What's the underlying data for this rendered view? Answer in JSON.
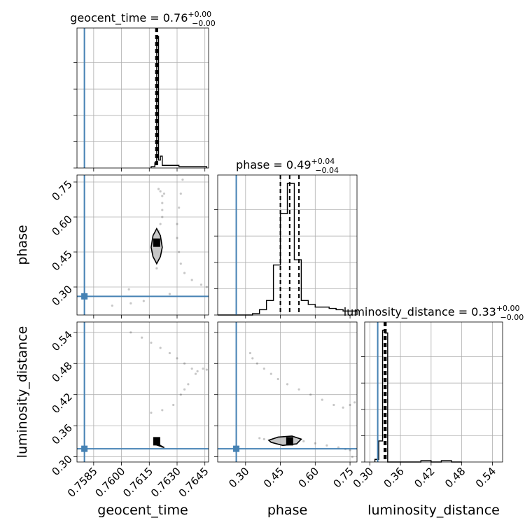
{
  "chart_data": {
    "type": "scatter",
    "subtype": "corner-plot",
    "grid": true,
    "truth_color": "#4682b4",
    "parameters": [
      {
        "name": "geocent_time",
        "title_prefix": "geocent_time = ",
        "median": "0.76",
        "plus": "+0.00",
        "minus": "−0.00",
        "range": [
          0.7576,
          0.7647
        ],
        "ticks": [
          0.7585,
          0.76,
          0.7615,
          0.763,
          0.7645
        ],
        "tick_labels": [
          "0.7585",
          "0.7600",
          "0.7615",
          "0.7630",
          "0.7645"
        ],
        "truth": 0.758,
        "quantiles": [
          0.7619,
          0.7619,
          0.7619
        ],
        "hist_edges": [
          0.7616,
          0.7618,
          0.7619,
          0.762,
          0.7621,
          0.7622,
          0.7631,
          0.7646
        ],
        "hist_counts": [
          0.01,
          0.04,
          1.0,
          0.06,
          0.09,
          0.02,
          0.01
        ]
      },
      {
        "name": "phase",
        "title_prefix": "phase = ",
        "median": "0.49",
        "plus": "+0.04",
        "minus": "−0.04",
        "range": [
          0.18,
          0.78
        ],
        "ticks": [
          0.3,
          0.45,
          0.6,
          0.75
        ],
        "tick_labels": [
          "0.30",
          "0.45",
          "0.60",
          "0.75"
        ],
        "truth": 0.26,
        "quantiles": [
          0.45,
          0.49,
          0.53
        ],
        "hist_edges": [
          0.18,
          0.21,
          0.24,
          0.27,
          0.3,
          0.33,
          0.36,
          0.39,
          0.42,
          0.45,
          0.48,
          0.51,
          0.54,
          0.57,
          0.6,
          0.63,
          0.66,
          0.69,
          0.72,
          0.75,
          0.78
        ],
        "hist_counts": [
          0,
          0,
          0,
          0,
          0,
          0.01,
          0.04,
          0.11,
          0.38,
          0.77,
          1.0,
          0.42,
          0.11,
          0.08,
          0.06,
          0.06,
          0.05,
          0.04,
          0.03,
          0.03
        ]
      },
      {
        "name": "luminosity_distance",
        "title_prefix": "luminosity_distance = ",
        "median": "0.33",
        "plus": "+0.00",
        "minus": "−0.00",
        "range": [
          0.29,
          0.56
        ],
        "ticks": [
          0.3,
          0.36,
          0.42,
          0.48,
          0.54
        ],
        "tick_labels": [
          "0.30",
          "0.36",
          "0.42",
          "0.48",
          "0.54"
        ],
        "truth": 0.3155,
        "quantiles": [
          0.33,
          0.33,
          0.33
        ],
        "hist_edges": [
          0.31,
          0.3175,
          0.325,
          0.33,
          0.335,
          0.4,
          0.42,
          0.44,
          0.46,
          0.48
        ],
        "hist_counts": [
          0.02,
          0.16,
          1.0,
          0.98,
          0.0,
          0.01,
          0.0,
          0.01,
          0.0
        ]
      }
    ],
    "pairs": [
      {
        "x": "geocent_time",
        "y": "phase",
        "core": {
          "x": 0.7619,
          "y": 0.49
        },
        "contour": [
          [
            0.7619,
            0.4
          ],
          [
            0.7621,
            0.43
          ],
          [
            0.7622,
            0.47
          ],
          [
            0.7621,
            0.52
          ],
          [
            0.7619,
            0.55
          ],
          [
            0.7617,
            0.52
          ],
          [
            0.7616,
            0.47
          ],
          [
            0.7617,
            0.43
          ],
          [
            0.7619,
            0.4
          ]
        ],
        "samples": [
          [
            0.7619,
            0.38
          ],
          [
            0.7619,
            0.41
          ],
          [
            0.762,
            0.54
          ],
          [
            0.7621,
            0.57
          ],
          [
            0.7622,
            0.6
          ],
          [
            0.7622,
            0.63
          ],
          [
            0.7622,
            0.66
          ],
          [
            0.7622,
            0.69
          ],
          [
            0.7621,
            0.71
          ],
          [
            0.762,
            0.72
          ],
          [
            0.7623,
            0.7
          ],
          [
            0.7633,
            0.76
          ],
          [
            0.7632,
            0.7
          ],
          [
            0.7631,
            0.64
          ],
          [
            0.763,
            0.57
          ],
          [
            0.763,
            0.51
          ],
          [
            0.7631,
            0.45
          ],
          [
            0.7632,
            0.4
          ],
          [
            0.7634,
            0.36
          ],
          [
            0.7638,
            0.33
          ],
          [
            0.7643,
            0.31
          ],
          [
            0.7646,
            0.3
          ],
          [
            0.7595,
            0.22
          ],
          [
            0.7605,
            0.23
          ],
          [
            0.7612,
            0.24
          ],
          [
            0.7626,
            0.27
          ],
          [
            0.7604,
            0.29
          ]
        ]
      },
      {
        "x": "geocent_time",
        "y": "luminosity_distance",
        "core": {
          "x": 0.7619,
          "y": 0.33
        },
        "contour": [
          [
            0.7618,
            0.324
          ],
          [
            0.7623,
            0.318
          ],
          [
            0.7618,
            0.327
          ],
          [
            0.7618,
            0.324
          ]
        ],
        "samples": [
          [
            0.762,
            0.325
          ],
          [
            0.7621,
            0.322
          ],
          [
            0.7622,
            0.319
          ],
          [
            0.7623,
            0.317
          ],
          [
            0.7605,
            0.54
          ],
          [
            0.7611,
            0.53
          ],
          [
            0.7616,
            0.52
          ],
          [
            0.7621,
            0.51
          ],
          [
            0.7626,
            0.5
          ],
          [
            0.763,
            0.49
          ],
          [
            0.7634,
            0.48
          ],
          [
            0.7638,
            0.47
          ],
          [
            0.7641,
            0.465
          ],
          [
            0.7644,
            0.47
          ],
          [
            0.7646,
            0.468
          ],
          [
            0.764,
            0.46
          ],
          [
            0.7636,
            0.44
          ],
          [
            0.7632,
            0.42
          ],
          [
            0.7628,
            0.4
          ],
          [
            0.7622,
            0.39
          ],
          [
            0.7616,
            0.385
          ],
          [
            0.7634,
            0.43
          ]
        ]
      },
      {
        "x": "phase",
        "y": "luminosity_distance",
        "core": {
          "x": 0.49,
          "y": 0.33
        },
        "contour": [
          [
            0.4,
            0.332
          ],
          [
            0.44,
            0.338
          ],
          [
            0.5,
            0.34
          ],
          [
            0.54,
            0.334
          ],
          [
            0.52,
            0.325
          ],
          [
            0.46,
            0.322
          ],
          [
            0.41,
            0.328
          ],
          [
            0.4,
            0.332
          ]
        ],
        "samples": [
          [
            0.55,
            0.33
          ],
          [
            0.6,
            0.326
          ],
          [
            0.65,
            0.322
          ],
          [
            0.7,
            0.318
          ],
          [
            0.73,
            0.315
          ],
          [
            0.75,
            0.313
          ],
          [
            0.76,
            0.3
          ],
          [
            0.38,
            0.334
          ],
          [
            0.36,
            0.336
          ],
          [
            0.32,
            0.5
          ],
          [
            0.33,
            0.49
          ],
          [
            0.35,
            0.48
          ],
          [
            0.38,
            0.47
          ],
          [
            0.41,
            0.46
          ],
          [
            0.44,
            0.45
          ],
          [
            0.48,
            0.44
          ],
          [
            0.53,
            0.43
          ],
          [
            0.58,
            0.42
          ],
          [
            0.63,
            0.41
          ],
          [
            0.68,
            0.4
          ],
          [
            0.72,
            0.395
          ],
          [
            0.75,
            0.4
          ],
          [
            0.77,
            0.405
          ]
        ]
      }
    ]
  }
}
